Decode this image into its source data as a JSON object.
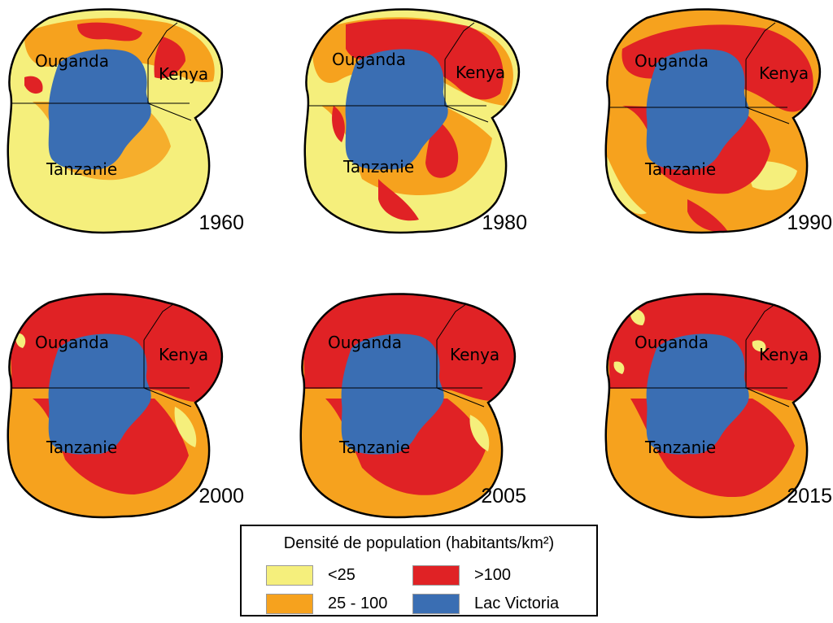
{
  "colors": {
    "low": "#f5ef7c",
    "medium": "#f6a21e",
    "high": "#e02225",
    "lake": "#3a6eb3",
    "border": "#000000"
  },
  "country_labels": {
    "uganda": "Ouganda",
    "kenya": "Kenya",
    "tanzania": "Tanzanie"
  },
  "panels": [
    {
      "year": "1960"
    },
    {
      "year": "1980"
    },
    {
      "year": "1990"
    },
    {
      "year": "2000"
    },
    {
      "year": "2005"
    },
    {
      "year": "2015"
    }
  ],
  "legend": {
    "title": "Densité de population (habitants/km²)",
    "items": [
      {
        "label": "<25",
        "color": "#f5ef7c"
      },
      {
        "label": ">100",
        "color": "#e02225"
      },
      {
        "label": "25 - 100",
        "color": "#f6a21e"
      },
      {
        "label": "Lac Victoria",
        "color": "#3a6eb3"
      }
    ]
  }
}
